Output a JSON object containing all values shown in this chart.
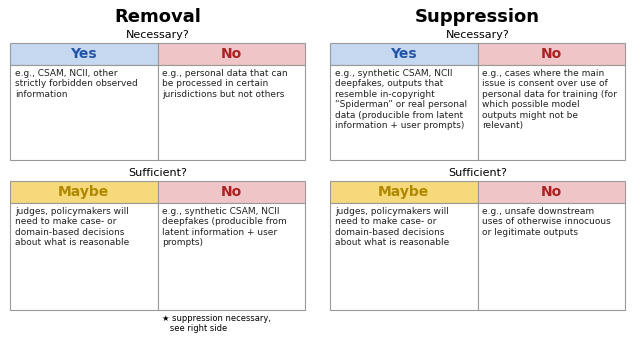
{
  "removal_title": "Removal",
  "suppression_title": "Suppression",
  "necessary_label": "Necessary?",
  "sufficient_label": "Sufficient?",
  "yes_color": "#c5d8f0",
  "no_color": "#f0c5c8",
  "maybe_color": "#f5d97a",
  "yes_text_color": "#2255aa",
  "no_text_color": "#aa2222",
  "maybe_text_color": "#b08800",
  "border_color": "#999999",
  "body_text_color": "#222222",
  "removal_necessary_yes": "e.g., CSAM, NCII, other\nstrictly forbidden observed\ninformation",
  "removal_necessary_no": "e.g., personal data that can\nbe processed in certain\njurisdictions but not others",
  "removal_sufficient_maybe": "judges, policymakers will\nneed to make case- or\ndomain-based decisions\nabout what is reasonable",
  "removal_sufficient_no": "e.g., synthetic CSAM, NCII\ndeepfakes (producible from\nlatent information + user\nprompts)",
  "removal_footnote": "★ suppression necessary,\n   see right side",
  "suppression_necessary_yes": "e.g., synthetic CSAM, NCII\ndeepfakes, outputs that\nresemble in-copyright\n“Spiderman” or real personal\ndata (producible from latent\ninformation + user prompts)",
  "suppression_necessary_no": "e.g., cases where the main\nissue is consent over use of\npersonal data for training (for\nwhich possible model\noutputs might not be\nrelevant)",
  "suppression_sufficient_maybe": "judges, policymakers will\nneed to make case- or\ndomain-based decisions\nabout what is reasonable",
  "suppression_sufficient_no": "e.g., unsafe downstream\nuses of otherwise innocuous\nor legitimate outputs",
  "bg_color": "#ffffff"
}
